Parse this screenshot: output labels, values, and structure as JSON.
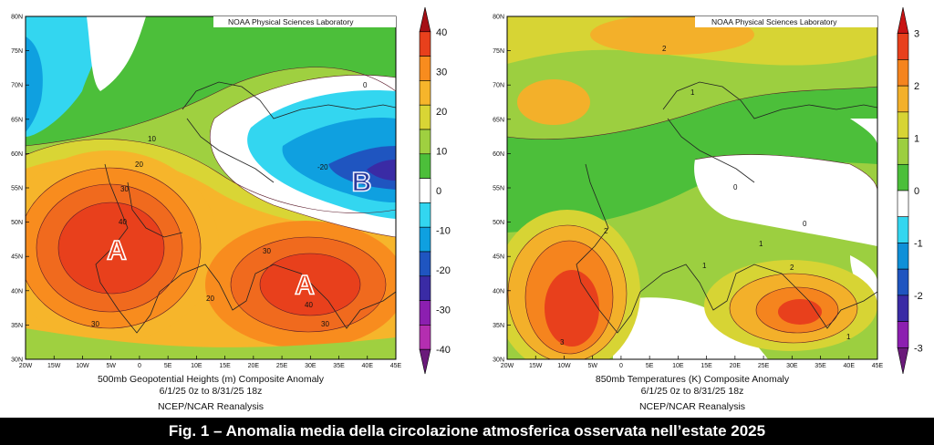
{
  "caption": "Fig. 1 – Anomalia media della circolazione atmosferica osservata nell’estate 2025",
  "left": {
    "credit": "NOAA Physical Sciences Laboratory",
    "lat_labels": [
      "80N",
      "75N",
      "70N",
      "65N",
      "60N",
      "55N",
      "50N",
      "45N",
      "40N",
      "35N",
      "30N"
    ],
    "lon_labels": [
      "20W",
      "15W",
      "10W",
      "5W",
      "0",
      "5E",
      "10E",
      "15E",
      "20E",
      "25E",
      "30E",
      "35E",
      "40E",
      "45E"
    ],
    "colorbar_labels": [
      "40",
      "30",
      "20",
      "10",
      "0",
      "-10",
      "-20",
      "-30",
      "-40"
    ],
    "colorbar_colors": [
      "#a50f15",
      "#e8401c",
      "#f88c1e",
      "#f6b52b",
      "#d9d535",
      "#9fd040",
      "#4cbf3a",
      "#ffffff",
      "#33d6f0",
      "#0fa0e0",
      "#1f55c0",
      "#3a2ba5",
      "#8c1fb0",
      "#b42eb0",
      "#6a1a7a"
    ],
    "title_line1": "500mb Geopotential Heights (m)    Composite Anomaly",
    "title_line2": "6/1/25 0z  to 8/31/25 18z",
    "title_line3": "NCEP/NCAR Reanalysis",
    "markers": [
      {
        "letter": "A",
        "lat": 46,
        "lon": -4
      },
      {
        "letter": "A",
        "lat": 41,
        "lon": 29
      },
      {
        "letter": "B",
        "lat": 56,
        "lon": 39
      }
    ],
    "contour_labels": [
      "10",
      "20",
      "30",
      "40",
      "30",
      "20",
      "30",
      "40",
      "30",
      "0",
      "-20"
    ]
  },
  "right": {
    "credit": "NOAA Physical Sciences Laboratory",
    "lat_labels": [
      "80N",
      "75N",
      "70N",
      "65N",
      "60N",
      "55N",
      "50N",
      "45N",
      "40N",
      "35N",
      "30N"
    ],
    "lon_labels": [
      "20W",
      "15W",
      "10W",
      "5W",
      "0",
      "5E",
      "10E",
      "15E",
      "20E",
      "25E",
      "30E",
      "35E",
      "40E",
      "45E"
    ],
    "colorbar_labels": [
      "3",
      "2",
      "1",
      "0",
      "-1",
      "-2",
      "-3"
    ],
    "colorbar_colors": [
      "#c81414",
      "#e8401c",
      "#f5841e",
      "#f3b02a",
      "#d7d434",
      "#9ccf40",
      "#4cbf3a",
      "#ffffff",
      "#33d6f0",
      "#0f90d8",
      "#1f55c0",
      "#3a2ba5",
      "#8c1fb0",
      "#6a1a7a"
    ],
    "title_line1": "850mb Temperatures (K)    Composite Anomaly",
    "title_line2": "6/1/25 0z  to 8/31/25 18z",
    "title_line3": "NCEP/NCAR Reanalysis",
    "contour_labels": [
      "2",
      "1",
      "1",
      "0",
      "0",
      "2",
      "1",
      "1",
      "2",
      "3"
    ]
  }
}
